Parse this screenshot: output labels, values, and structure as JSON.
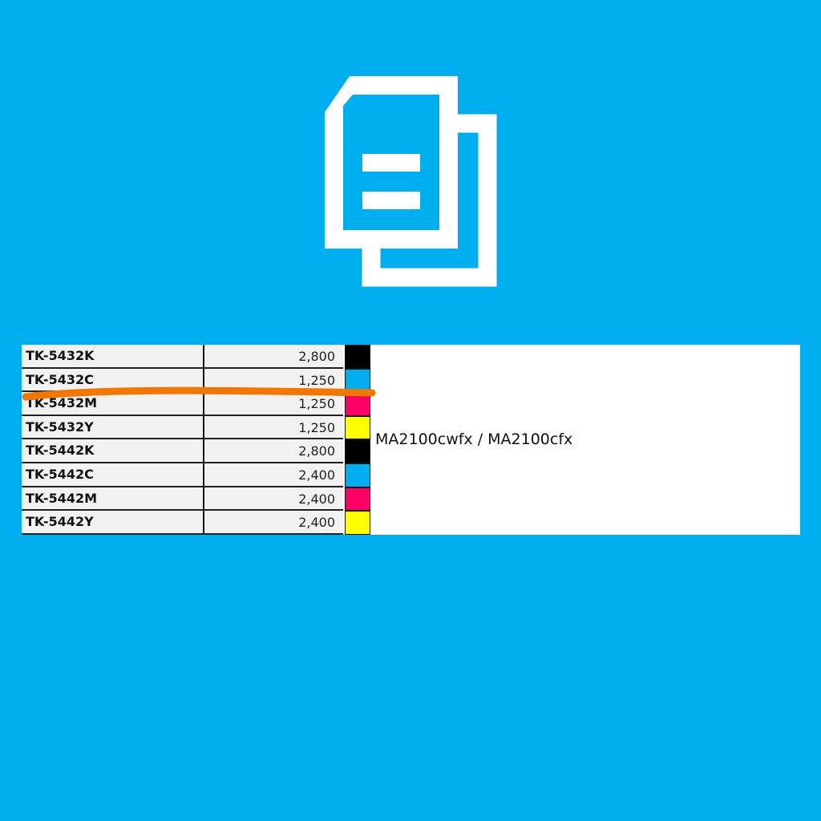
{
  "icon": "copy-documents-icon",
  "table": {
    "rows": [
      {
        "code": "TK-5432K",
        "yield": "2,800",
        "color": "#000000"
      },
      {
        "code": "TK-5432C",
        "yield": "1,250",
        "color": "#00adef"
      },
      {
        "code": "TK-5432M",
        "yield": "1,250",
        "color": "#ff0066"
      },
      {
        "code": "TK-5432Y",
        "yield": "1,250",
        "color": "#ffff00"
      },
      {
        "code": "TK-5442K",
        "yield": "2,800",
        "color": "#000000"
      },
      {
        "code": "TK-5442C",
        "yield": "2,400",
        "color": "#00adef"
      },
      {
        "code": "TK-5442M",
        "yield": "2,400",
        "color": "#ff0066"
      },
      {
        "code": "TK-5442Y",
        "yield": "2,400",
        "color": "#ffff00"
      }
    ],
    "model": "MA2100cwfx / MA2100cfx"
  },
  "colors": {
    "background": "#00adef",
    "strike": "#f07800"
  }
}
